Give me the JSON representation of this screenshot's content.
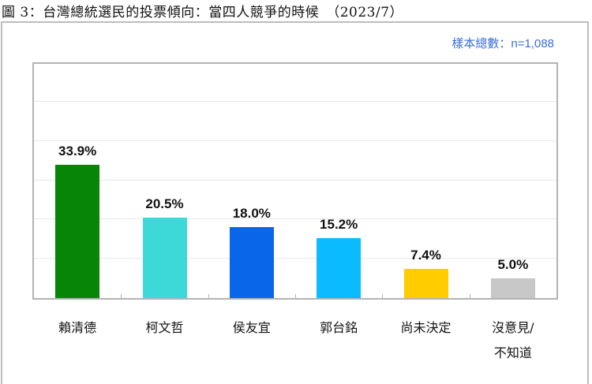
{
  "figure": {
    "title": "圖 3：台灣總統選民的投票傾向：當四人競爭的時候　（2023/7）",
    "sample_note": "樣本總數：n=1,088"
  },
  "chart_data": {
    "type": "bar",
    "title": "台灣總統選民的投票傾向：當四人競爭的時候 (2023/7)",
    "subtitle": "樣本總數：n=1,088",
    "xlabel": "",
    "ylabel": "",
    "ylim": [
      0,
      60
    ],
    "grid": true,
    "legend": "none",
    "categories": [
      "賴清德",
      "柯文哲",
      "侯友宜",
      "郭台銘",
      "尚未決定",
      "沒意見/不知道"
    ],
    "values": [
      33.9,
      20.5,
      18.0,
      15.2,
      7.4,
      5.0
    ],
    "labels": [
      "33.9%",
      "20.5%",
      "18.0%",
      "15.2%",
      "7.4%",
      "5.0%"
    ],
    "colors": [
      "#078507",
      "#3dd9d9",
      "#0a66e8",
      "#0abbff",
      "#ffcc00",
      "#c8c8c8"
    ]
  },
  "axis_labels": [
    {
      "line1": "賴清德",
      "line2": ""
    },
    {
      "line1": "柯文哲",
      "line2": ""
    },
    {
      "line1": "侯友宜",
      "line2": ""
    },
    {
      "line1": "郭台銘",
      "line2": ""
    },
    {
      "line1": "尚未決定",
      "line2": ""
    },
    {
      "line1": "沒意見/",
      "line2": "不知道"
    }
  ]
}
